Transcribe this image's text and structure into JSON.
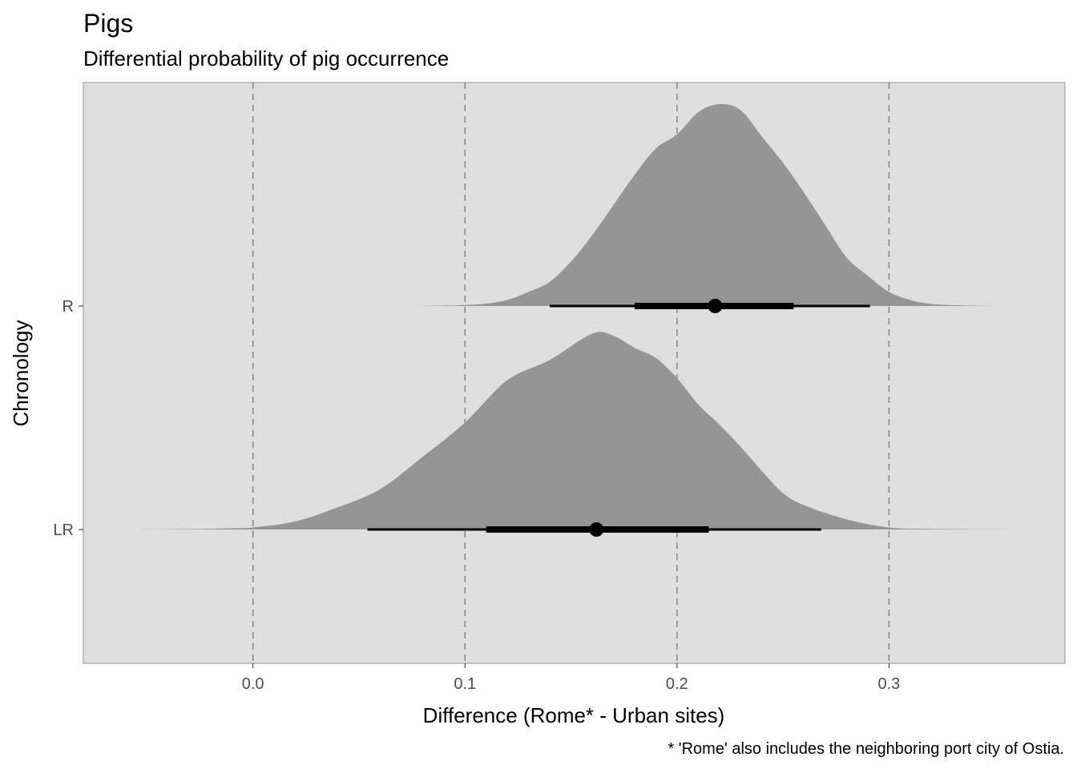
{
  "chart_data": {
    "type": "density-interval",
    "title": "Pigs",
    "subtitle": "Differential probability of pig occurrence",
    "xlabel": "Difference (Rome* - Urban sites)",
    "ylabel": "Chronology",
    "caption": "* 'Rome' also includes the neighboring port city of Ostia.",
    "xlim": [
      -0.08,
      0.383
    ],
    "x_ticks": [
      0.0,
      0.1,
      0.2,
      0.3
    ],
    "x_tick_labels": [
      "0.0",
      "0.1",
      "0.2",
      "0.3"
    ],
    "reference_lines": [
      0.0,
      0.1,
      0.2,
      0.3
    ],
    "categories": [
      "R",
      "LR"
    ],
    "grid": false,
    "colors": {
      "panel": "#dfdfdf",
      "density": "#959595",
      "interval": "#000000",
      "ref_line": "#7f7f7f"
    },
    "series": [
      {
        "name": "R",
        "point": 0.218,
        "interval_66": [
          0.18,
          0.255
        ],
        "interval_95": [
          0.14,
          0.291
        ],
        "density": [
          [
            0.075,
            0.0
          ],
          [
            0.09,
            0.002
          ],
          [
            0.1,
            0.005
          ],
          [
            0.11,
            0.012
          ],
          [
            0.12,
            0.03
          ],
          [
            0.13,
            0.07
          ],
          [
            0.14,
            0.12
          ],
          [
            0.15,
            0.22
          ],
          [
            0.16,
            0.35
          ],
          [
            0.17,
            0.5
          ],
          [
            0.18,
            0.65
          ],
          [
            0.19,
            0.78
          ],
          [
            0.2,
            0.85
          ],
          [
            0.21,
            0.96
          ],
          [
            0.22,
            1.0
          ],
          [
            0.23,
            0.97
          ],
          [
            0.24,
            0.84
          ],
          [
            0.25,
            0.71
          ],
          [
            0.26,
            0.56
          ],
          [
            0.27,
            0.4
          ],
          [
            0.28,
            0.24
          ],
          [
            0.29,
            0.15
          ],
          [
            0.3,
            0.07
          ],
          [
            0.31,
            0.03
          ],
          [
            0.32,
            0.01
          ],
          [
            0.335,
            0.003
          ],
          [
            0.35,
            0.0
          ]
        ]
      },
      {
        "name": "LR",
        "point": 0.162,
        "interval_66": [
          0.11,
          0.215
        ],
        "interval_95": [
          0.054,
          0.268
        ],
        "density": [
          [
            -0.058,
            0.0
          ],
          [
            -0.03,
            0.002
          ],
          [
            -0.01,
            0.006
          ],
          [
            0.0,
            0.01
          ],
          [
            0.02,
            0.04
          ],
          [
            0.04,
            0.11
          ],
          [
            0.06,
            0.2
          ],
          [
            0.08,
            0.36
          ],
          [
            0.1,
            0.53
          ],
          [
            0.12,
            0.74
          ],
          [
            0.14,
            0.84
          ],
          [
            0.16,
            0.97
          ],
          [
            0.17,
            0.96
          ],
          [
            0.18,
            0.9
          ],
          [
            0.19,
            0.85
          ],
          [
            0.2,
            0.75
          ],
          [
            0.21,
            0.62
          ],
          [
            0.22,
            0.52
          ],
          [
            0.23,
            0.41
          ],
          [
            0.24,
            0.29
          ],
          [
            0.25,
            0.18
          ],
          [
            0.26,
            0.12
          ],
          [
            0.28,
            0.05
          ],
          [
            0.3,
            0.01
          ],
          [
            0.32,
            0.003
          ],
          [
            0.36,
            0.0
          ]
        ]
      }
    ]
  }
}
